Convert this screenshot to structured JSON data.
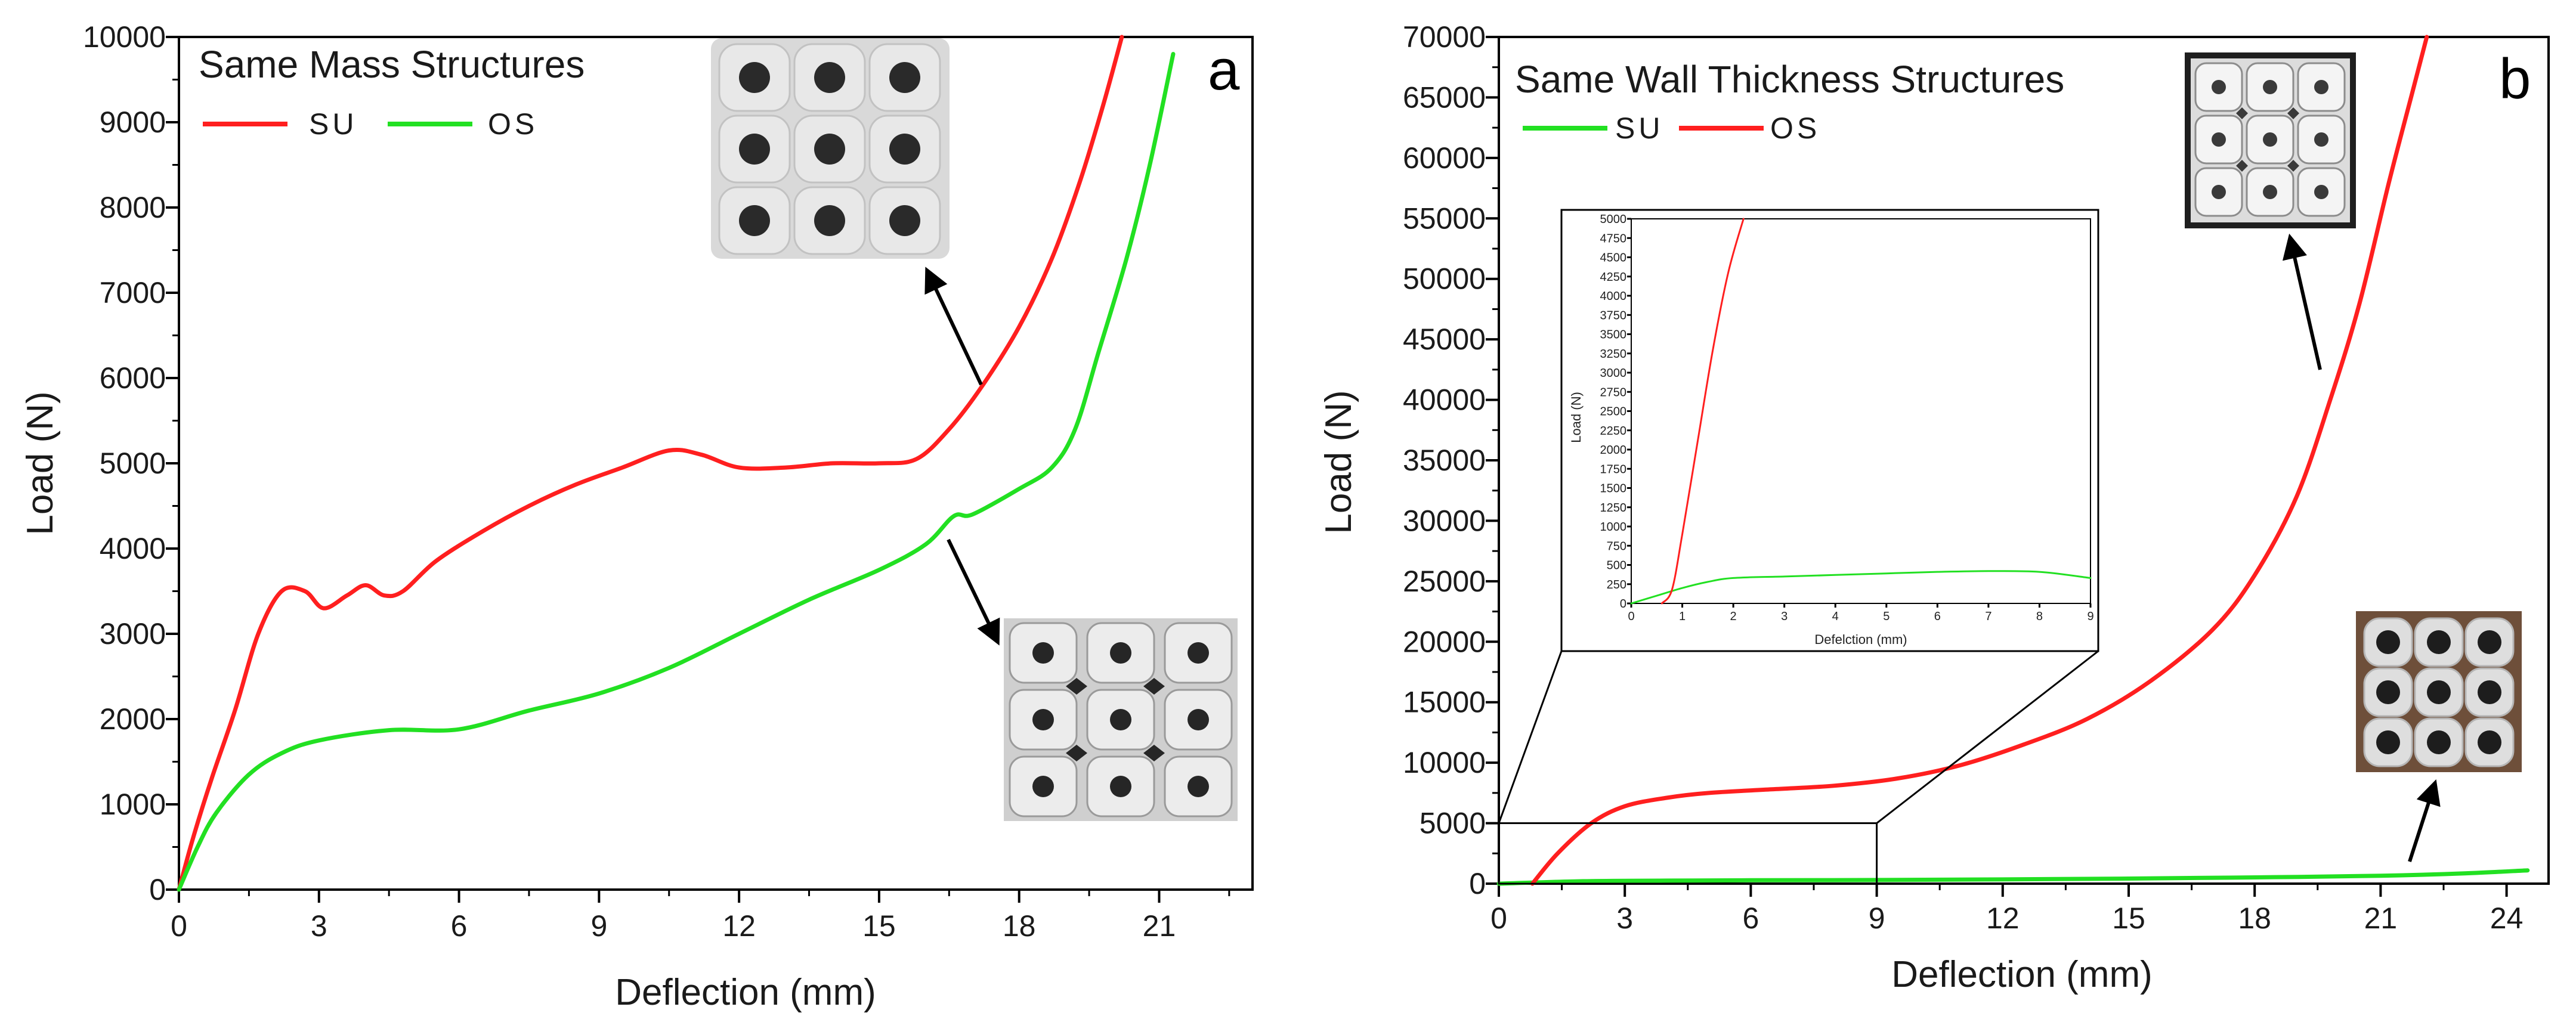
{
  "figure": {
    "colors": {
      "SU_a": "#ff1f1f",
      "OS_a": "#22e022",
      "SU_b": "#22e022",
      "OS_b": "#ff1f1f",
      "axis": "#000000"
    }
  },
  "chart_data": [
    {
      "panel": "a",
      "type": "line",
      "title": "Same Mass Structures",
      "xlabel": "Deflection (mm)",
      "ylabel": "Load (N)",
      "xlim": [
        0,
        23
      ],
      "ylim": [
        0,
        10000
      ],
      "xticks": [
        "0",
        "3",
        "6",
        "9",
        "12",
        "15",
        "18",
        "21"
      ],
      "yticks": [
        "0",
        "1000",
        "2000",
        "3000",
        "4000",
        "5000",
        "6000",
        "7000",
        "8000",
        "9000",
        "10000"
      ],
      "legend_position": "top-left",
      "series": [
        {
          "name": "SU",
          "color": "#ff1f1f",
          "points": [
            [
              0,
              0
            ],
            [
              0.3,
              600
            ],
            [
              0.7,
              1300
            ],
            [
              1.2,
              2100
            ],
            [
              1.7,
              3000
            ],
            [
              2.2,
              3500
            ],
            [
              2.7,
              3500
            ],
            [
              3.1,
              3300
            ],
            [
              3.6,
              3450
            ],
            [
              4.0,
              3570
            ],
            [
              4.4,
              3450
            ],
            [
              4.8,
              3500
            ],
            [
              5.5,
              3850
            ],
            [
              6.5,
              4200
            ],
            [
              7.5,
              4500
            ],
            [
              8.5,
              4750
            ],
            [
              9.5,
              4950
            ],
            [
              10.5,
              5150
            ],
            [
              11.2,
              5100
            ],
            [
              12.0,
              4950
            ],
            [
              13.0,
              4950
            ],
            [
              14.0,
              5000
            ],
            [
              15.0,
              5000
            ],
            [
              15.8,
              5050
            ],
            [
              16.5,
              5400
            ],
            [
              17.2,
              5900
            ],
            [
              18.0,
              6600
            ],
            [
              18.7,
              7400
            ],
            [
              19.3,
              8300
            ],
            [
              19.8,
              9200
            ],
            [
              20.2,
              10000
            ]
          ]
        },
        {
          "name": "OS",
          "color": "#22e022",
          "points": [
            [
              0,
              0
            ],
            [
              0.4,
              500
            ],
            [
              0.8,
              900
            ],
            [
              1.5,
              1350
            ],
            [
              2.2,
              1600
            ],
            [
              3.0,
              1750
            ],
            [
              4.5,
              1870
            ],
            [
              6.0,
              1880
            ],
            [
              7.5,
              2100
            ],
            [
              9.0,
              2300
            ],
            [
              10.5,
              2600
            ],
            [
              12.0,
              3000
            ],
            [
              13.5,
              3400
            ],
            [
              15.0,
              3750
            ],
            [
              16.0,
              4050
            ],
            [
              16.6,
              4380
            ],
            [
              17.0,
              4400
            ],
            [
              18.0,
              4700
            ],
            [
              18.7,
              4950
            ],
            [
              19.2,
              5400
            ],
            [
              19.7,
              6300
            ],
            [
              20.3,
              7400
            ],
            [
              20.8,
              8500
            ],
            [
              21.3,
              9800
            ]
          ]
        }
      ],
      "annotations": []
    },
    {
      "panel": "b",
      "type": "line",
      "title": "Same Wall Thickness Structures",
      "xlabel": "Deflection (mm)",
      "ylabel": "Load (N)",
      "xlim": [
        0,
        25
      ],
      "ylim": [
        0,
        70000
      ],
      "xticks": [
        "0",
        "3",
        "6",
        "9",
        "12",
        "15",
        "18",
        "21",
        "24"
      ],
      "yticks": [
        "0",
        "5000",
        "10000",
        "15000",
        "20000",
        "25000",
        "30000",
        "35000",
        "40000",
        "45000",
        "50000",
        "55000",
        "60000",
        "65000",
        "70000"
      ],
      "legend_position": "top-left",
      "series": [
        {
          "name": "SU",
          "color": "#22e022",
          "points": [
            [
              0,
              0
            ],
            [
              2,
              200
            ],
            [
              4,
              250
            ],
            [
              6,
              280
            ],
            [
              9,
              300
            ],
            [
              12,
              350
            ],
            [
              15,
              420
            ],
            [
              18,
              520
            ],
            [
              21,
              650
            ],
            [
              23,
              850
            ],
            [
              24.5,
              1100
            ]
          ]
        },
        {
          "name": "OS",
          "color": "#ff1f1f",
          "points": [
            [
              0.8,
              0
            ],
            [
              1.4,
              2500
            ],
            [
              2.2,
              5000
            ],
            [
              3.0,
              6400
            ],
            [
              4.0,
              7100
            ],
            [
              5.0,
              7500
            ],
            [
              6.5,
              7800
            ],
            [
              8.0,
              8100
            ],
            [
              9.5,
              8700
            ],
            [
              11.0,
              9800
            ],
            [
              12.5,
              11500
            ],
            [
              14.0,
              13600
            ],
            [
              15.5,
              16700
            ],
            [
              17.0,
              21000
            ],
            [
              18.0,
              25500
            ],
            [
              19.0,
              32000
            ],
            [
              19.8,
              40000
            ],
            [
              20.5,
              48000
            ],
            [
              21.2,
              58000
            ],
            [
              21.8,
              66000
            ],
            [
              22.1,
              70000
            ]
          ]
        }
      ],
      "inset": {
        "xlabel": "Defelction (mm)",
        "ylabel": "Load (N)",
        "xlim": [
          0,
          9
        ],
        "ylim": [
          0,
          5000
        ],
        "xticks": [
          "0",
          "1",
          "2",
          "3",
          "4",
          "5",
          "6",
          "7",
          "8",
          "9"
        ],
        "yticks": [
          "0",
          "250",
          "500",
          "750",
          "1000",
          "1250",
          "1500",
          "1750",
          "2000",
          "2250",
          "2500",
          "2750",
          "3000",
          "3250",
          "3500",
          "3750",
          "4000",
          "4250",
          "4500",
          "4750",
          "5000"
        ],
        "zoom_region": {
          "x": [
            0,
            9
          ],
          "y": [
            0,
            5000
          ]
        },
        "series": [
          {
            "name": "SU",
            "color": "#22e022",
            "points": [
              [
                0,
                0
              ],
              [
                0.5,
                100
              ],
              [
                1.0,
                200
              ],
              [
                1.5,
                280
              ],
              [
                2.0,
                330
              ],
              [
                3.0,
                350
              ],
              [
                4.0,
                370
              ],
              [
                5.0,
                390
              ],
              [
                6.0,
                410
              ],
              [
                7.0,
                420
              ],
              [
                8.0,
                410
              ],
              [
                9.0,
                330
              ]
            ]
          },
          {
            "name": "OS",
            "color": "#ff1f1f",
            "points": [
              [
                0.6,
                0
              ],
              [
                0.8,
                180
              ],
              [
                1.0,
                900
              ],
              [
                1.3,
                2100
              ],
              [
                1.6,
                3300
              ],
              [
                1.9,
                4300
              ],
              [
                2.2,
                5000
              ]
            ]
          }
        ]
      }
    }
  ]
}
